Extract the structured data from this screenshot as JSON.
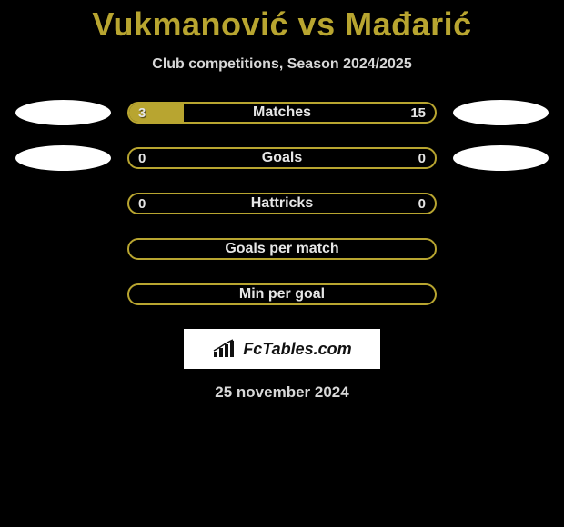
{
  "title": "Vukmanović vs Mađarić",
  "subtitle": "Club competitions, Season 2024/2025",
  "colors": {
    "accent": "#b8a530",
    "bg": "#000000",
    "text_light": "#e6e6e6",
    "ellipse": "#ffffff"
  },
  "rows": [
    {
      "label": "Matches",
      "left": "3",
      "right": "15",
      "fill_pct": 18,
      "show_left_ellipse": true,
      "show_right_ellipse": true
    },
    {
      "label": "Goals",
      "left": "0",
      "right": "0",
      "fill_pct": 0,
      "show_left_ellipse": true,
      "show_right_ellipse": true
    },
    {
      "label": "Hattricks",
      "left": "0",
      "right": "0",
      "fill_pct": 0,
      "show_left_ellipse": false,
      "show_right_ellipse": false
    },
    {
      "label": "Goals per match",
      "left": "",
      "right": "",
      "fill_pct": 0,
      "show_left_ellipse": false,
      "show_right_ellipse": false
    },
    {
      "label": "Min per goal",
      "left": "",
      "right": "",
      "fill_pct": 0,
      "show_left_ellipse": false,
      "show_right_ellipse": false
    }
  ],
  "logo_text": "FcTables.com",
  "date": "25 november 2024"
}
